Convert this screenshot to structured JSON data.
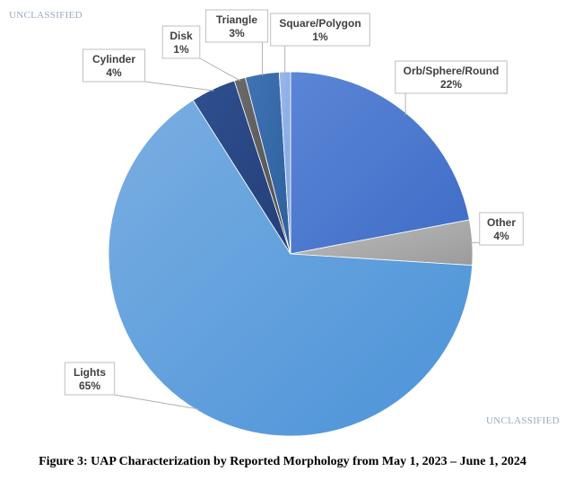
{
  "markings": {
    "top": "UNCLASSIFIED",
    "bottom": "UNCLASSIFIED"
  },
  "caption": "Figure 3:  UAP Characterization by Reported Morphology from May 1, 2023 – June 1, 2024",
  "chart_data": {
    "type": "pie",
    "title": "",
    "legend": "none",
    "start_angle_deg": 0,
    "direction": "clockwise",
    "slices": [
      {
        "name": "Orb/Sphere/Round",
        "percent_label": "22%",
        "value": 22,
        "color": "#3f6cc7",
        "color_light": "#5b86d6"
      },
      {
        "name": "Other",
        "percent_label": "4%",
        "value": 4,
        "color": "#9b9b9b",
        "color_light": "#bdbdbd"
      },
      {
        "name": "Lights",
        "percent_label": "65%",
        "value": 65,
        "color": "#4b93d8",
        "color_light": "#7aaee2"
      },
      {
        "name": "Cylinder",
        "percent_label": "4%",
        "value": 4,
        "color": "#243f78",
        "color_light": "#2f4f8f"
      },
      {
        "name": "Disk",
        "percent_label": "1%",
        "value": 1,
        "color": "#505050",
        "color_light": "#6a6a6a"
      },
      {
        "name": "Triangle",
        "percent_label": "3%",
        "value": 3,
        "color": "#2d5f9c",
        "color_light": "#3f73b3"
      },
      {
        "name": "Square/Polygon",
        "percent_label": "1%",
        "value": 1,
        "color": "#7fa3e2",
        "color_light": "#9cb9ec"
      }
    ]
  }
}
